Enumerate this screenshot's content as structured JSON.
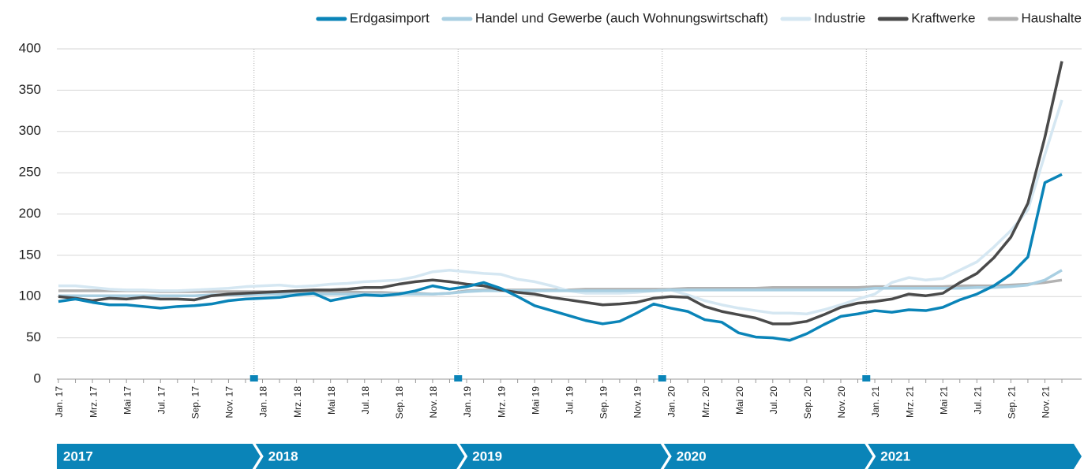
{
  "chart_data": {
    "type": "line",
    "categories": [
      "Jan. 17",
      null,
      "Mrz. 17",
      null,
      "Mai 17",
      null,
      "Jul. 17",
      null,
      "Sep. 17",
      null,
      "Nov. 17",
      null,
      "Jan. 18",
      null,
      "Mrz. 18",
      null,
      "Mai 18",
      null,
      "Jul. 18",
      null,
      "Sep. 18",
      null,
      "Nov. 18",
      null,
      "Jan. 19",
      null,
      "Mrz. 19",
      null,
      "Mai 19",
      null,
      "Jul. 19",
      null,
      "Sep. 19",
      null,
      "Nov. 19",
      null,
      "Jan. 20",
      null,
      "Mrz. 20",
      null,
      "Mai 20",
      null,
      "Jul. 20",
      null,
      "Sep. 20",
      null,
      "Nov. 20",
      null,
      "Jan. 21",
      null,
      "Mrz. 21",
      null,
      "Mai 21",
      null,
      "Jul. 21",
      null,
      "Sep. 21",
      null,
      "Nov. 21",
      null
    ],
    "periods": [
      "2017",
      "2018",
      "2019",
      "2020",
      "2021"
    ],
    "ylim": [
      0,
      400
    ],
    "yticks": [
      0,
      50,
      100,
      150,
      200,
      250,
      300,
      350,
      400
    ],
    "grid": true,
    "legend": "top-right",
    "series": [
      {
        "name": "Erdgasimport",
        "color": "#0a84b8",
        "values": [
          94,
          97,
          93,
          90,
          90,
          88,
          86,
          88,
          89,
          91,
          95,
          97,
          98,
          99,
          102,
          104,
          95,
          99,
          102,
          101,
          103,
          107,
          113,
          109,
          112,
          117,
          110,
          100,
          89,
          83,
          77,
          71,
          67,
          70,
          80,
          91,
          86,
          82,
          72,
          69,
          56,
          51,
          50,
          47,
          55,
          66,
          76,
          79,
          83,
          81,
          84,
          83,
          87,
          96,
          103,
          113,
          127,
          148,
          238,
          248
        ]
      },
      {
        "name": "Handel und Gewerbe (auch Wohnungswirtschaft)",
        "color": "#a9cfe2",
        "values": [
          101,
          101,
          101,
          101,
          101,
          101,
          101,
          101,
          101,
          102,
          102,
          102,
          103,
          103,
          103,
          103,
          103,
          103,
          103,
          103,
          103,
          103,
          103,
          104,
          106,
          107,
          107,
          107,
          107,
          107,
          107,
          107,
          107,
          107,
          107,
          107,
          108,
          108,
          108,
          108,
          108,
          108,
          108,
          108,
          108,
          108,
          108,
          108,
          110,
          110,
          110,
          110,
          110,
          110,
          111,
          111,
          112,
          114,
          120,
          132
        ]
      },
      {
        "name": "Industrie",
        "color": "#d5e7f2",
        "values": [
          113,
          113,
          111,
          109,
          108,
          108,
          107,
          107,
          108,
          109,
          110,
          112,
          113,
          114,
          112,
          113,
          115,
          116,
          118,
          119,
          120,
          124,
          130,
          132,
          130,
          128,
          127,
          121,
          118,
          113,
          107,
          104,
          104,
          104,
          105,
          107,
          108,
          102,
          95,
          90,
          86,
          83,
          80,
          80,
          79,
          84,
          90,
          97,
          103,
          117,
          123,
          120,
          122,
          132,
          142,
          160,
          180,
          205,
          272,
          338
        ]
      },
      {
        "name": "Kraftwerke",
        "color": "#4a4a4a",
        "values": [
          100,
          98,
          95,
          98,
          97,
          99,
          97,
          97,
          96,
          101,
          103,
          104,
          105,
          106,
          107,
          108,
          108,
          109,
          111,
          111,
          115,
          118,
          120,
          118,
          115,
          113,
          108,
          105,
          103,
          99,
          96,
          93,
          90,
          91,
          93,
          98,
          100,
          99,
          88,
          82,
          78,
          74,
          67,
          67,
          70,
          78,
          87,
          92,
          94,
          97,
          103,
          101,
          104,
          117,
          128,
          147,
          172,
          213,
          293,
          385
        ]
      },
      {
        "name": "Haushalte",
        "color": "#b2b2b2",
        "values": [
          107,
          107,
          107,
          107,
          107,
          107,
          106,
          106,
          106,
          106,
          106,
          106,
          106,
          106,
          106,
          106,
          106,
          106,
          105,
          105,
          104,
          104,
          103,
          104,
          107,
          108,
          108,
          108,
          108,
          108,
          108,
          109,
          109,
          109,
          109,
          109,
          109,
          110,
          110,
          110,
          110,
          110,
          111,
          111,
          111,
          111,
          111,
          111,
          112,
          112,
          112,
          112,
          112,
          113,
          113,
          113,
          114,
          115,
          117,
          120
        ]
      }
    ]
  }
}
